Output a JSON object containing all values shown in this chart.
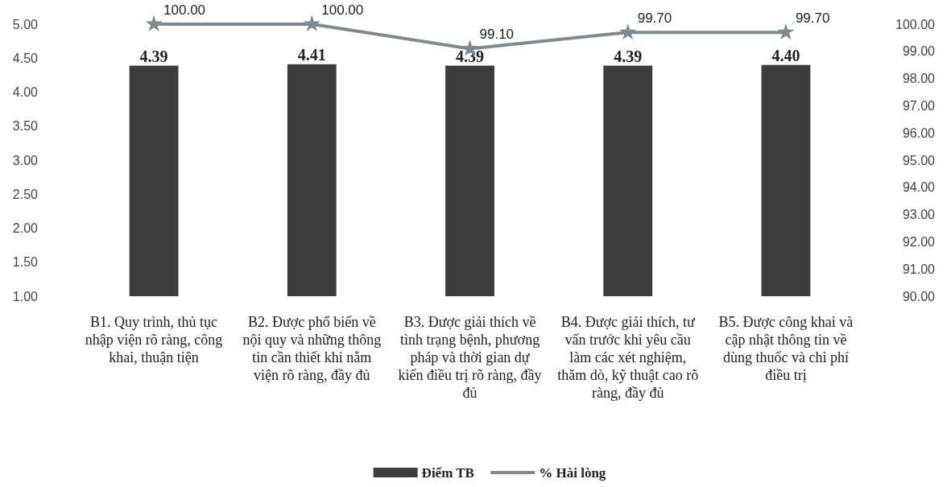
{
  "chart_data": {
    "type": "bar",
    "categories": [
      "B1. Quy trình, thủ tục nhập viện rõ ràng, công khai, thuận tiện",
      "B2. Được phổ biến về nội quy và những thông tin cần thiết khi nằm viện rõ ràng, đầy đủ",
      "B3. Được giải thích về tình trạng bệnh, phương pháp và thời gian dự kiến điều trị rõ ràng, đầy đủ",
      "B4. Được giải thích, tư vấn trước khi yêu cầu làm các xét nghiệm, thăm dò, kỹ thuật cao rõ ràng, đầy đủ",
      "B5. Được công khai và cập nhật thông tin về dùng thuốc và chi phí điều trị"
    ],
    "series": [
      {
        "name": "Điểm TB",
        "color": "#3c3c3c",
        "values": [
          4.39,
          4.41,
          4.39,
          4.39,
          4.4
        ],
        "value_labels": [
          "4.39",
          "4.41",
          "4.39",
          "4.39",
          "4.40"
        ]
      },
      {
        "name": "% Hài lòng",
        "type": "line",
        "axis": "y2",
        "color": "#808890",
        "marker": "star",
        "values": [
          100.0,
          100.0,
          99.1,
          99.7,
          99.7
        ],
        "value_labels": [
          "100.00",
          "100.00",
          "99.10",
          "99.70",
          "99.70"
        ]
      }
    ],
    "ylim": [
      1,
      5
    ],
    "yticks": [
      {
        "value": 1,
        "label": "1.00"
      },
      {
        "value": 1.5,
        "label": "1.50"
      },
      {
        "value": 2,
        "label": "2.00"
      },
      {
        "value": 2.5,
        "label": "2.50"
      },
      {
        "value": 3,
        "label": "3.00"
      },
      {
        "value": 3.5,
        "label": "3.50"
      },
      {
        "value": 4,
        "label": "4.00"
      },
      {
        "value": 4.5,
        "label": "4.50"
      },
      {
        "value": 5,
        "label": "5.00"
      }
    ],
    "y2lim": [
      90,
      100
    ],
    "y2ticks": [
      {
        "value": 90,
        "label": "90.00"
      },
      {
        "value": 91,
        "label": "91.00"
      },
      {
        "value": 92,
        "label": "92.00"
      },
      {
        "value": 93,
        "label": "93.00"
      },
      {
        "value": 94,
        "label": "94.00"
      },
      {
        "value": 95,
        "label": "95.00"
      },
      {
        "value": 96,
        "label": "96.00"
      },
      {
        "value": 97,
        "label": "97.00"
      },
      {
        "value": 98,
        "label": "98.00"
      },
      {
        "value": 99,
        "label": "99.00"
      },
      {
        "value": 100,
        "label": "100.00"
      }
    ],
    "grid": false,
    "legend": "bottom"
  }
}
